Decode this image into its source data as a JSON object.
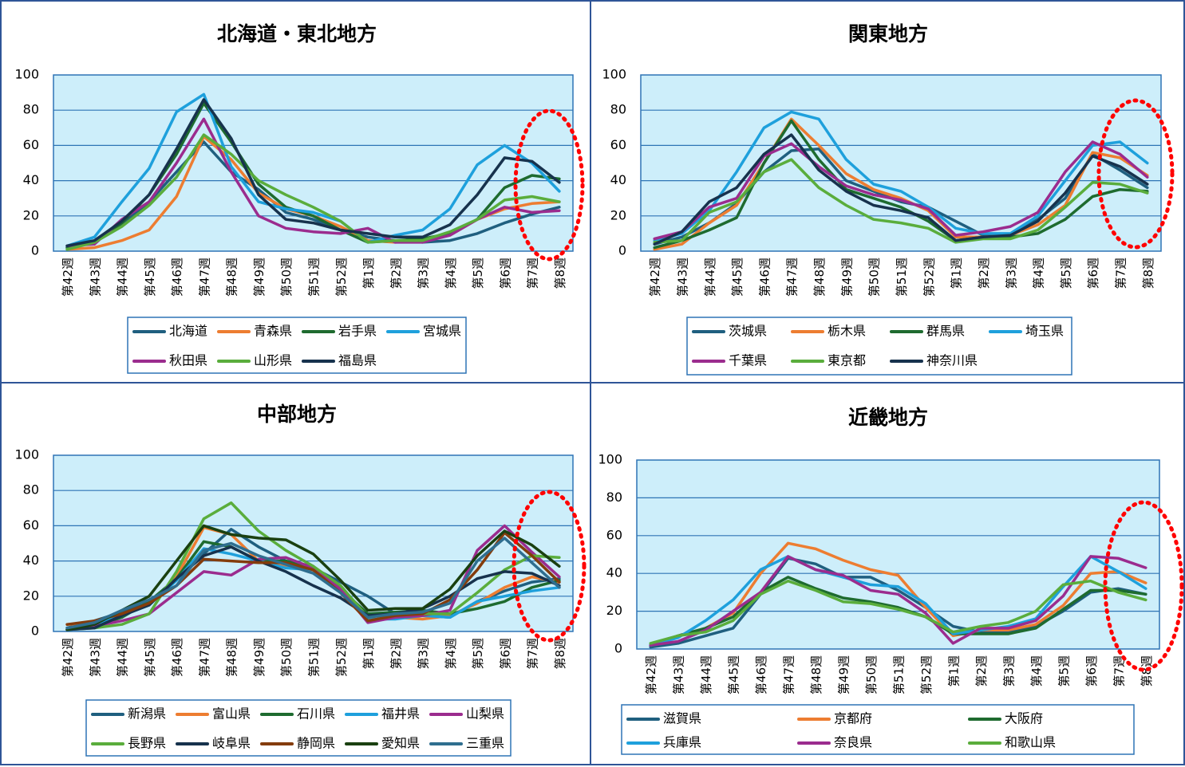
{
  "chart_data": [
    {
      "type": "line",
      "title": "北海道・東北地方",
      "categories": [
        "第42週",
        "第43週",
        "第44週",
        "第45週",
        "第46週",
        "第47週",
        "第48週",
        "第49週",
        "第50週",
        "第51週",
        "第52週",
        "第1週",
        "第2週",
        "第3週",
        "第4週",
        "第5週",
        "第6週",
        "第7週",
        "第8週"
      ],
      "ylim": [
        0,
        100
      ],
      "yticks": [
        "0",
        "20",
        "40",
        "60",
        "80",
        "100"
      ],
      "grid": true,
      "legend": "bottom",
      "highlight": "dotted red ellipse around 第6週–第8週",
      "series": [
        {
          "name": "北海道",
          "color": "#1f5f7f",
          "values": [
            2,
            5,
            15,
            28,
            45,
            62,
            45,
            35,
            22,
            18,
            12,
            8,
            6,
            5,
            6,
            10,
            16,
            21,
            25
          ]
        },
        {
          "name": "青森県",
          "color": "#ed7d31",
          "values": [
            1,
            2,
            6,
            12,
            31,
            65,
            52,
            33,
            24,
            20,
            14,
            6,
            5,
            6,
            9,
            18,
            24,
            27,
            28
          ]
        },
        {
          "name": "岩手県",
          "color": "#1e6b2f",
          "values": [
            2,
            5,
            16,
            32,
            55,
            84,
            62,
            38,
            25,
            20,
            12,
            5,
            6,
            7,
            10,
            18,
            36,
            43,
            41
          ]
        },
        {
          "name": "宮城県",
          "color": "#1ea0dc",
          "values": [
            3,
            8,
            28,
            47,
            79,
            89,
            48,
            28,
            24,
            22,
            17,
            5,
            9,
            12,
            24,
            49,
            60,
            50,
            34
          ]
        },
        {
          "name": "秋田県",
          "color": "#9b2c8e",
          "values": [
            3,
            4,
            18,
            28,
            50,
            75,
            45,
            20,
            13,
            11,
            10,
            13,
            5,
            5,
            9,
            18,
            25,
            22,
            23
          ]
        },
        {
          "name": "山形県",
          "color": "#5aad3c",
          "values": [
            1,
            5,
            14,
            26,
            42,
            66,
            55,
            40,
            32,
            25,
            17,
            5,
            6,
            6,
            11,
            18,
            29,
            31,
            28
          ]
        },
        {
          "name": "福島県",
          "color": "#17324d",
          "values": [
            3,
            6,
            17,
            32,
            58,
            86,
            64,
            32,
            18,
            16,
            12,
            10,
            8,
            8,
            15,
            32,
            53,
            51,
            39
          ]
        }
      ]
    },
    {
      "type": "line",
      "title": "関東地方",
      "categories": [
        "第42週",
        "第43週",
        "第44週",
        "第45週",
        "第46週",
        "第47週",
        "第48週",
        "第49週",
        "第50週",
        "第51週",
        "第52週",
        "第1週",
        "第2週",
        "第3週",
        "第4週",
        "第5週",
        "第6週",
        "第7週",
        "第8週"
      ],
      "ylim": [
        0,
        100
      ],
      "yticks": [
        "0",
        "20",
        "40",
        "60",
        "80",
        "100"
      ],
      "grid": true,
      "legend": "bottom",
      "highlight": "dotted red ellipse around 第6週–第8週",
      "series": [
        {
          "name": "茨城県",
          "color": "#1f5f7f",
          "values": [
            4,
            8,
            16,
            27,
            45,
            57,
            58,
            40,
            34,
            28,
            25,
            17,
            9,
            9,
            18,
            30,
            55,
            46,
            36
          ]
        },
        {
          "name": "栃木県",
          "color": "#ed7d31",
          "values": [
            1,
            4,
            16,
            26,
            50,
            75,
            60,
            44,
            35,
            30,
            23,
            8,
            8,
            9,
            15,
            26,
            56,
            53,
            43
          ]
        },
        {
          "name": "群馬県",
          "color": "#1e6b2f",
          "values": [
            2,
            6,
            12,
            19,
            50,
            74,
            52,
            35,
            30,
            25,
            17,
            6,
            8,
            8,
            10,
            18,
            31,
            35,
            34
          ]
        },
        {
          "name": "埼玉県",
          "color": "#1ea0dc",
          "values": [
            6,
            10,
            23,
            45,
            70,
            79,
            75,
            52,
            38,
            34,
            25,
            13,
            10,
            10,
            20,
            40,
            60,
            62,
            50
          ]
        },
        {
          "name": "千葉県",
          "color": "#9b2c8e",
          "values": [
            7,
            11,
            25,
            30,
            54,
            61,
            48,
            37,
            32,
            29,
            24,
            9,
            11,
            14,
            22,
            45,
            62,
            55,
            42
          ]
        },
        {
          "name": "東京都",
          "color": "#5aad3c",
          "values": [
            5,
            6,
            22,
            28,
            45,
            52,
            36,
            26,
            18,
            16,
            13,
            5,
            7,
            7,
            12,
            25,
            39,
            38,
            33
          ]
        },
        {
          "name": "神奈川県",
          "color": "#17324d",
          "values": [
            4,
            11,
            28,
            36,
            55,
            66,
            46,
            34,
            26,
            23,
            19,
            6,
            8,
            9,
            17,
            33,
            54,
            48,
            38
          ]
        }
      ]
    },
    {
      "type": "line",
      "title": "中部地方",
      "categories": [
        "第42週",
        "第43週",
        "第44週",
        "第45週",
        "第46週",
        "第47週",
        "第48週",
        "第49週",
        "第50週",
        "第51週",
        "第52週",
        "第1週",
        "第2週",
        "第3週",
        "第4週",
        "第5週",
        "第6週",
        "第7週",
        "第8週"
      ],
      "ylim": [
        0,
        100
      ],
      "yticks": [
        "0",
        "20",
        "40",
        "60",
        "80",
        "100"
      ],
      "grid": true,
      "legend": "bottom",
      "highlight": "dotted red ellipse around 第6週–第8週",
      "series": [
        {
          "name": "新潟県",
          "color": "#1f5f7f",
          "values": [
            2,
            6,
            11,
            16,
            29,
            44,
            58,
            48,
            40,
            36,
            28,
            20,
            10,
            9,
            8,
            17,
            23,
            28,
            30
          ]
        },
        {
          "name": "富山県",
          "color": "#ed7d31",
          "values": [
            4,
            5,
            10,
            15,
            31,
            59,
            55,
            40,
            37,
            34,
            22,
            6,
            8,
            7,
            9,
            16,
            25,
            31,
            28
          ]
        },
        {
          "name": "石川県",
          "color": "#1e6b2f",
          "values": [
            1,
            3,
            8,
            17,
            30,
            51,
            48,
            40,
            40,
            37,
            24,
            10,
            11,
            12,
            10,
            13,
            17,
            25,
            29
          ]
        },
        {
          "name": "福井県",
          "color": "#1ea0dc",
          "values": [
            2,
            4,
            9,
            15,
            29,
            47,
            44,
            40,
            36,
            35,
            23,
            7,
            7,
            9,
            8,
            17,
            20,
            23,
            25
          ]
        },
        {
          "name": "山梨県",
          "color": "#9b2c8e",
          "values": [
            1,
            3,
            6,
            10,
            22,
            34,
            32,
            41,
            42,
            36,
            24,
            5,
            8,
            9,
            12,
            46,
            60,
            45,
            31
          ]
        },
        {
          "name": "長野県",
          "color": "#5aad3c",
          "values": [
            1,
            2,
            4,
            10,
            34,
            64,
            73,
            57,
            46,
            37,
            26,
            8,
            10,
            10,
            10,
            22,
            35,
            43,
            42
          ]
        },
        {
          "name": "岐阜県",
          "color": "#17324d",
          "values": [
            1,
            2,
            9,
            15,
            30,
            43,
            48,
            40,
            34,
            26,
            19,
            9,
            10,
            13,
            20,
            30,
            34,
            33,
            26
          ]
        },
        {
          "name": "静岡県",
          "color": "#843c0c",
          "values": [
            4,
            6,
            10,
            16,
            26,
            41,
            40,
            39,
            39,
            35,
            22,
            6,
            9,
            10,
            18,
            35,
            56,
            43,
            28
          ]
        },
        {
          "name": "愛知県",
          "color": "#1a4010",
          "values": [
            1,
            4,
            12,
            20,
            40,
            60,
            55,
            53,
            52,
            44,
            29,
            12,
            13,
            13,
            24,
            43,
            57,
            49,
            37
          ]
        },
        {
          "name": "三重県",
          "color": "#2f6e8f",
          "values": [
            2,
            5,
            12,
            18,
            26,
            46,
            50,
            43,
            38,
            33,
            22,
            8,
            10,
            11,
            16,
            40,
            53,
            39,
            25
          ]
        }
      ]
    },
    {
      "type": "line",
      "title": "近畿地方",
      "categories": [
        "第42週",
        "第43週",
        "第44週",
        "第45週",
        "第46週",
        "第47週",
        "第48週",
        "第49週",
        "第50週",
        "第51週",
        "第52週",
        "第1週",
        "第2週",
        "第3週",
        "第4週",
        "第5週",
        "第6週",
        "第7週",
        "第8週"
      ],
      "ylim": [
        0,
        100
      ],
      "yticks": [
        "0",
        "20",
        "40",
        "60",
        "80",
        "100"
      ],
      "grid": true,
      "legend": "bottom",
      "highlight": "dotted red ellipse around 第6週–第8週",
      "series": [
        {
          "name": "滋賀県",
          "color": "#1f5f7f",
          "values": [
            1,
            3,
            7,
            11,
            29,
            48,
            45,
            38,
            38,
            31,
            22,
            12,
            9,
            9,
            12,
            20,
            30,
            32,
            29
          ]
        },
        {
          "name": "京都府",
          "color": "#ed7d31",
          "values": [
            2,
            7,
            11,
            19,
            40,
            56,
            53,
            47,
            42,
            39,
            22,
            7,
            10,
            10,
            13,
            23,
            40,
            41,
            35
          ]
        },
        {
          "name": "大阪府",
          "color": "#1e6b2f",
          "values": [
            2,
            7,
            11,
            17,
            30,
            38,
            32,
            27,
            25,
            22,
            17,
            8,
            8,
            8,
            11,
            21,
            31,
            31,
            29
          ]
        },
        {
          "name": "兵庫県",
          "color": "#1ea0dc",
          "values": [
            2,
            6,
            15,
            26,
            42,
            49,
            42,
            38,
            34,
            33,
            24,
            8,
            10,
            12,
            16,
            33,
            49,
            41,
            32
          ]
        },
        {
          "name": "奈良県",
          "color": "#9b2c8e",
          "values": [
            2,
            4,
            10,
            20,
            30,
            49,
            42,
            39,
            31,
            29,
            19,
            3,
            11,
            11,
            15,
            28,
            49,
            48,
            43
          ]
        },
        {
          "name": "和歌山県",
          "color": "#5aad3c",
          "values": [
            3,
            7,
            9,
            15,
            29,
            36,
            31,
            25,
            24,
            21,
            17,
            9,
            12,
            14,
            20,
            34,
            36,
            30,
            26
          ]
        }
      ]
    }
  ]
}
